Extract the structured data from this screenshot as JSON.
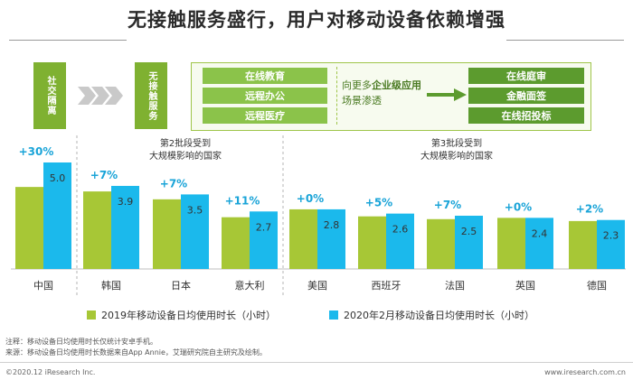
{
  "title": "无接触服务盛行，用户对移动设备依赖增强",
  "colors": {
    "series2019": "#a7c736",
    "series2020": "#1bb9ec"
  },
  "flow": {
    "box1": "社交隔离",
    "box2": "无接触服务",
    "services": [
      "在线教育",
      "远程办公",
      "远程医疗"
    ],
    "mid_prefix": "向更多",
    "mid_bold": "企业级应用",
    "mid_line2": "场景渗透",
    "enterprise": [
      "在线庭审",
      "金融面签",
      "在线招投标"
    ]
  },
  "groups": {
    "batch2": "第2批段受到\n大规模影响的国家",
    "batch3": "第3批段受到\n大规模影响的国家"
  },
  "chart_data": {
    "type": "bar",
    "categories": [
      "中国",
      "韩国",
      "日本",
      "意大利",
      "美国",
      "西班牙",
      "法国",
      "英国",
      "德国"
    ],
    "series": [
      {
        "name": "2019年移动设备日均使用时长（小时）",
        "values": [
          3.85,
          3.64,
          3.27,
          2.43,
          2.8,
          2.47,
          2.34,
          2.4,
          2.25
        ]
      },
      {
        "name": "2020年2月移动设备日均使用时长（小时）",
        "values": [
          5.0,
          3.9,
          3.5,
          2.7,
          2.8,
          2.6,
          2.5,
          2.4,
          2.3
        ]
      }
    ],
    "growth_labels": [
      "+30%",
      "+7%",
      "+7%",
      "+11%",
      "+0%",
      "+5%",
      "+7%",
      "+0%",
      "+2%"
    ],
    "value_labels": [
      "5.0",
      "3.9",
      "3.5",
      "2.7",
      "2.8",
      "2.6",
      "2.5",
      "2.4",
      "2.3"
    ],
    "ylim": [
      0,
      5.3
    ]
  },
  "legend": {
    "item1": "2019年移动设备日均使用时长（小时）",
    "item2": "2020年2月移动设备日均使用时长（小时）"
  },
  "notes": {
    "note": "注释：移动设备日均使用时长仅统计安卓手机。",
    "source": "来源：移动设备日均使用时长数据来自App Annie，艾瑞研究院自主研究及绘制。"
  },
  "footer": {
    "left": "©2020.12 iResearch Inc.",
    "right": "www.iresearch.com.cn"
  }
}
